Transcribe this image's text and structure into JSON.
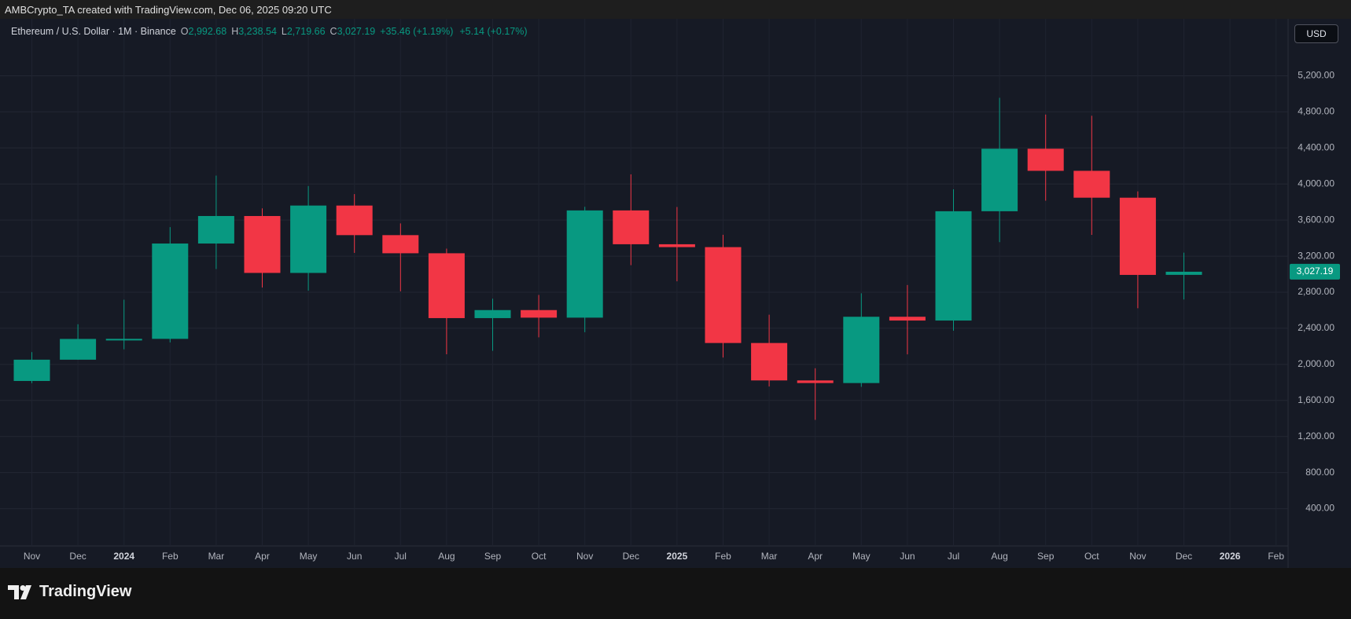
{
  "header": "AMBCrypto_TA created with TradingView.com, Dec 06, 2025 09:20 UTC",
  "logo": "TradingView",
  "chart_data": {
    "type": "candlestick",
    "symbol": "Ethereum / U.S. Dollar · 1M · Binance",
    "ohlc_legend": [
      {
        "key": "O",
        "value": "2,992.68"
      },
      {
        "key": "H",
        "value": "3,238.54"
      },
      {
        "key": "L",
        "value": "2,719.66"
      },
      {
        "key": "C",
        "value": "3,027.19"
      }
    ],
    "change": "+35.46 (+1.19%)",
    "change_extended": "+5.14 (+0.17%)",
    "currency": "USD",
    "categories": [
      "Nov",
      "Dec",
      "2024",
      "Feb",
      "Mar",
      "Apr",
      "May",
      "Jun",
      "Jul",
      "Aug",
      "Sep",
      "Oct",
      "Nov",
      "Dec",
      "2025",
      "Feb",
      "Mar",
      "Apr",
      "May",
      "Jun",
      "Jul",
      "Aug",
      "Sep",
      "Oct",
      "Nov",
      "Dec",
      "2026",
      "Feb"
    ],
    "open": [
      1816,
      2052,
      2282,
      2283,
      3340,
      3645,
      3014,
      3761,
      3433,
      3232,
      2513,
      2602,
      2518,
      3707,
      3332,
      3300,
      2237,
      1822,
      1793,
      2528,
      2486,
      3698,
      4391,
      4146,
      3848,
      2992.68,
      null,
      null
    ],
    "high": [
      2136,
      2445,
      2717,
      3522,
      4093,
      3730,
      3977,
      3888,
      3563,
      3283,
      2728,
      2770,
      3747,
      4107,
      3745,
      3437,
      2551,
      1957,
      2788,
      2880,
      3941,
      4956,
      4770,
      4756,
      3918,
      3238.54,
      null,
      null
    ],
    "low": [
      1792,
      2051,
      2167,
      2244,
      3057,
      2852,
      2817,
      3236,
      2810,
      2112,
      2150,
      2300,
      2357,
      3100,
      2921,
      2076,
      1755,
      1385,
      1751,
      2111,
      2373,
      3355,
      3815,
      3436,
      2623,
      2719.66,
      null,
      null
    ],
    "close": [
      2052,
      2282,
      2283,
      3340,
      3645,
      3014,
      3761,
      3433,
      3232,
      2513,
      2602,
      2518,
      3707,
      3332,
      3300,
      2237,
      1822,
      1793,
      2528,
      2486,
      3698,
      4391,
      4146,
      3848,
      2992,
      3027.19,
      null,
      null
    ],
    "up_color": "#089981",
    "down_color": "#f23645",
    "ylim": [
      -257,
      5831
    ],
    "yticks": [
      {
        "value": 400,
        "label": "400.00"
      },
      {
        "value": 800,
        "label": "800.00"
      },
      {
        "value": 1200,
        "label": "1,200.00"
      },
      {
        "value": 1600,
        "label": "1,600.00"
      },
      {
        "value": 2000,
        "label": "2,000.00"
      },
      {
        "value": 2400,
        "label": "2,400.00"
      },
      {
        "value": 2800,
        "label": "2,800.00"
      },
      {
        "value": 3200,
        "label": "3,200.00"
      },
      {
        "value": 3600,
        "label": "3,600.00"
      },
      {
        "value": 4000,
        "label": "4,000.00"
      },
      {
        "value": 4400,
        "label": "4,400.00"
      },
      {
        "value": 4800,
        "label": "4,800.00"
      },
      {
        "value": 5200,
        "label": "5,200.00"
      }
    ],
    "grid": true,
    "last_price": {
      "value": 3027.19,
      "label": "3,027.19"
    }
  }
}
